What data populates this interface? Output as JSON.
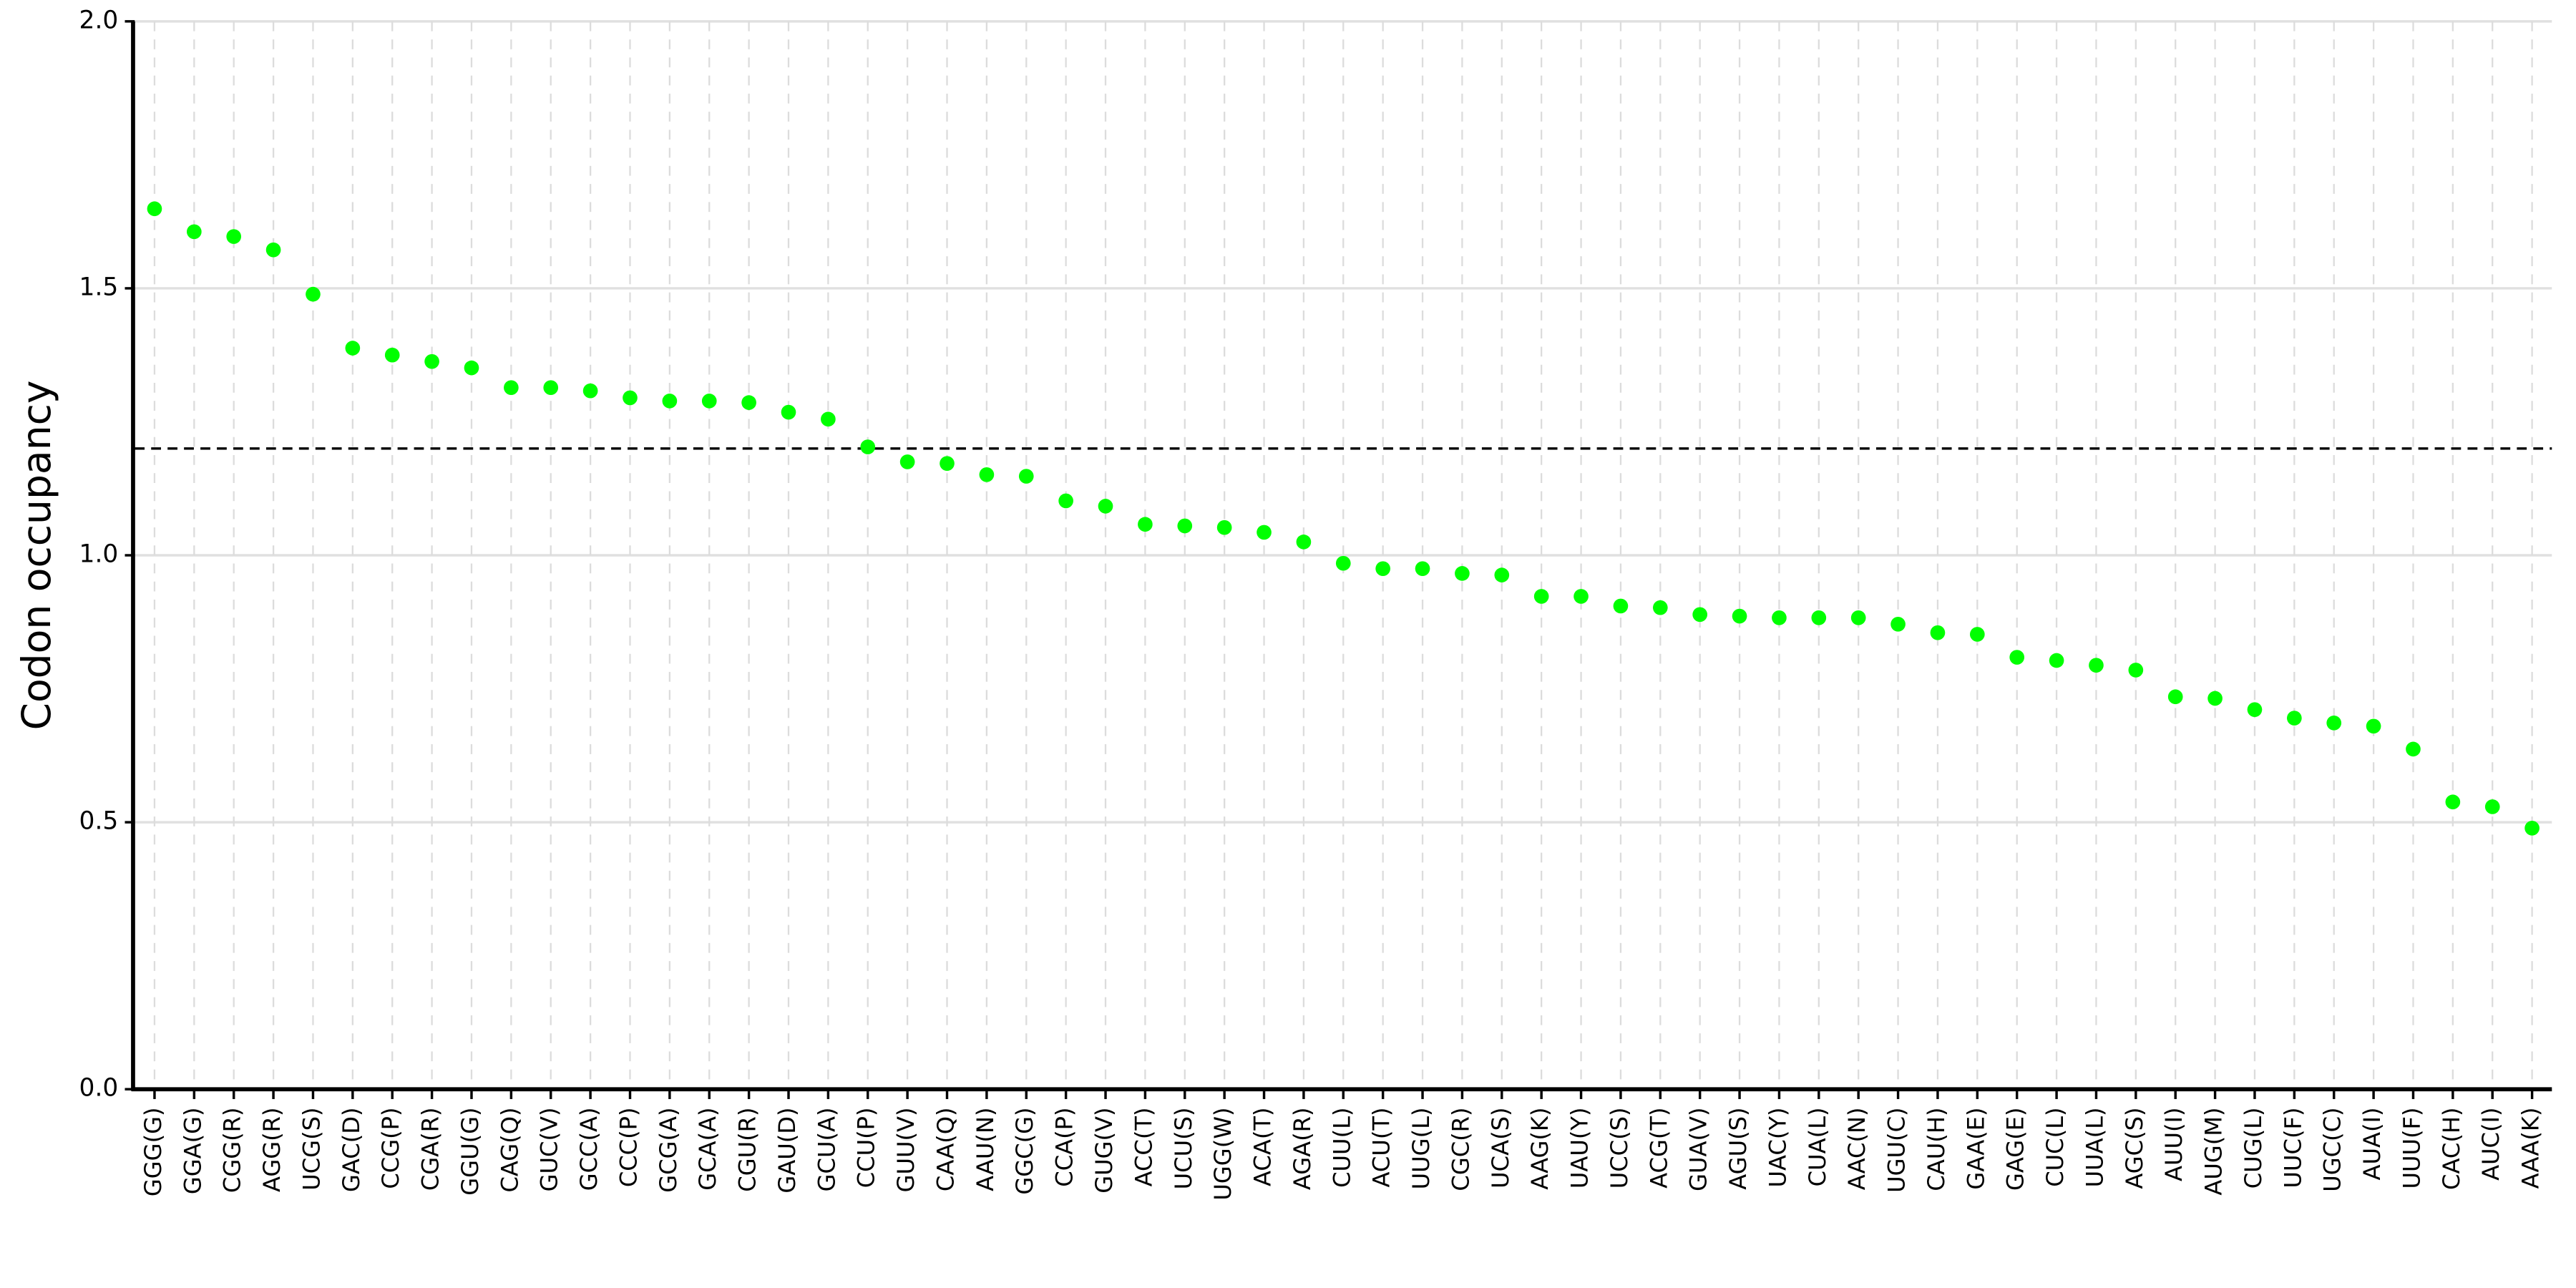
{
  "chart_data": {
    "type": "scatter",
    "ylabel": "Codon occupancy",
    "categories": [
      "GGG(G)",
      "GGA(G)",
      "CGG(R)",
      "AGG(R)",
      "UCG(S)",
      "GAC(D)",
      "CCG(P)",
      "CGA(R)",
      "GGU(G)",
      "CAG(Q)",
      "GUC(V)",
      "GCC(A)",
      "CCC(P)",
      "GCG(A)",
      "GCA(A)",
      "CGU(R)",
      "GAU(D)",
      "GCU(A)",
      "CCU(P)",
      "GUU(V)",
      "CAA(Q)",
      "AAU(N)",
      "GGC(G)",
      "CCA(P)",
      "GUG(V)",
      "ACC(T)",
      "UCU(S)",
      "UGG(W)",
      "ACA(T)",
      "AGA(R)",
      "CUU(L)",
      "ACU(T)",
      "UUG(L)",
      "CGC(R)",
      "UCA(S)",
      "AAG(K)",
      "UAU(Y)",
      "UCC(S)",
      "ACG(T)",
      "GUA(V)",
      "AGU(S)",
      "UAC(Y)",
      "CUA(L)",
      "AAC(N)",
      "UGU(C)",
      "CAU(H)",
      "GAA(E)",
      "GAG(E)",
      "CUC(L)",
      "UUA(L)",
      "AGC(S)",
      "AUU(I)",
      "AUG(M)",
      "CUG(L)",
      "UUC(F)",
      "UGC(C)",
      "AUA(I)",
      "UUU(F)",
      "CAC(H)",
      "AUC(I)",
      "AAA(K)"
    ],
    "values": [
      1.649,
      1.606,
      1.597,
      1.572,
      1.489,
      1.388,
      1.375,
      1.363,
      1.351,
      1.314,
      1.314,
      1.308,
      1.295,
      1.289,
      1.289,
      1.286,
      1.268,
      1.255,
      1.203,
      1.175,
      1.172,
      1.151,
      1.148,
      1.102,
      1.092,
      1.058,
      1.055,
      1.052,
      1.043,
      1.025,
      0.985,
      0.975,
      0.975,
      0.966,
      0.963,
      0.923,
      0.923,
      0.905,
      0.902,
      0.889,
      0.886,
      0.883,
      0.883,
      0.883,
      0.871,
      0.855,
      0.852,
      0.809,
      0.803,
      0.794,
      0.785,
      0.735,
      0.732,
      0.711,
      0.695,
      0.686,
      0.68,
      0.637,
      0.538,
      0.529,
      0.489
    ],
    "color": "#00ff00",
    "threshold": 1.2,
    "ylim": [
      0,
      2
    ],
    "yticks": [
      {
        "value": 0,
        "label": "0.0"
      },
      0.5,
      {
        "value": 1,
        "label": "1.0"
      },
      1.5,
      {
        "value": 2,
        "label": "2.0"
      }
    ],
    "grid": true
  }
}
